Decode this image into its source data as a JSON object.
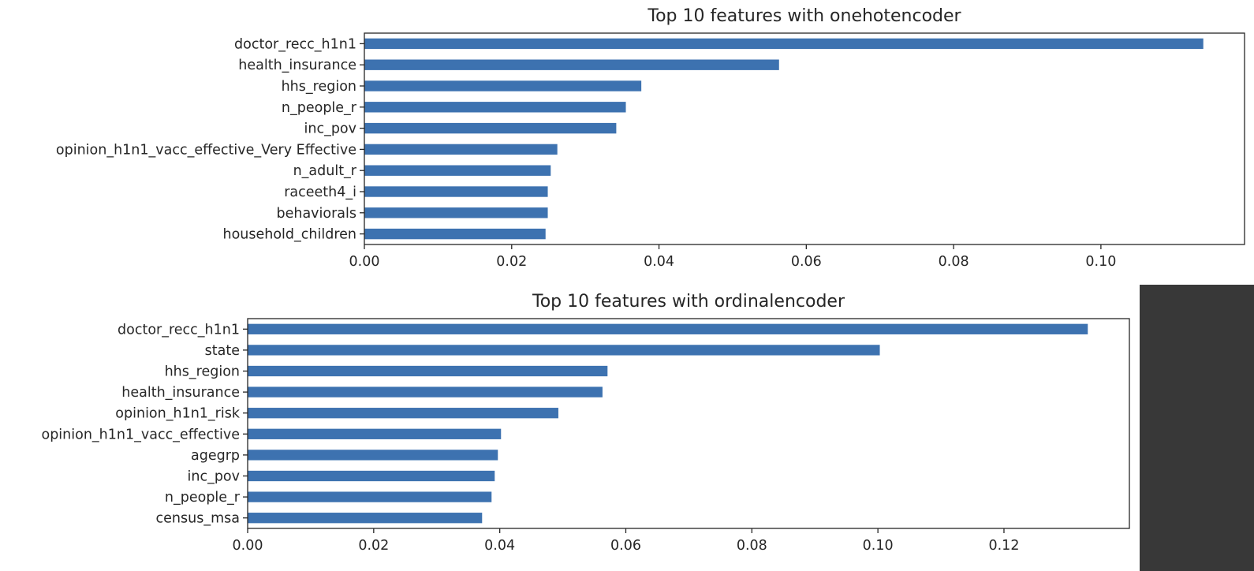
{
  "colors": {
    "bar": "#3d72b0",
    "background": "#ffffff",
    "side_panel": "#383838"
  },
  "chart_data": [
    {
      "type": "bar",
      "orientation": "horizontal",
      "title": "Top 10 features with onehotencoder",
      "xlabel": "",
      "ylabel": "",
      "grid": false,
      "xlim": [
        0.0,
        0.1195
      ],
      "xticks": [
        "0.00",
        "0.02",
        "0.04",
        "0.06",
        "0.08",
        "0.10"
      ],
      "xtick_values": [
        0.0,
        0.02,
        0.04,
        0.06,
        0.08,
        0.1
      ],
      "categories": [
        "doctor_recc_h1n1",
        "health_insurance",
        "hhs_region",
        "n_people_r",
        "inc_pov",
        "opinion_h1n1_vacc_effective_Very Effective",
        "n_adult_r",
        "raceeth4_i",
        "behaviorals",
        "household_children"
      ],
      "values": [
        0.1139,
        0.0563,
        0.0376,
        0.0355,
        0.0342,
        0.0262,
        0.0253,
        0.0249,
        0.0249,
        0.0246
      ]
    },
    {
      "type": "bar",
      "orientation": "horizontal",
      "title": "Top 10 features with ordinalencoder",
      "xlabel": "",
      "ylabel": "",
      "grid": false,
      "xlim": [
        0.0,
        0.1399
      ],
      "xticks": [
        "0.00",
        "0.02",
        "0.04",
        "0.06",
        "0.08",
        "0.10",
        "0.12"
      ],
      "xtick_values": [
        0.0,
        0.02,
        0.04,
        0.06,
        0.08,
        0.1,
        0.12
      ],
      "categories": [
        "doctor_recc_h1n1",
        "state",
        "hhs_region",
        "health_insurance",
        "opinion_h1n1_risk",
        "opinion_h1n1_vacc_effective",
        "agegrp",
        "inc_pov",
        "n_people_r",
        "census_msa"
      ],
      "values": [
        0.1333,
        0.1003,
        0.0571,
        0.0563,
        0.0493,
        0.0402,
        0.0397,
        0.0392,
        0.0387,
        0.0372
      ]
    }
  ]
}
